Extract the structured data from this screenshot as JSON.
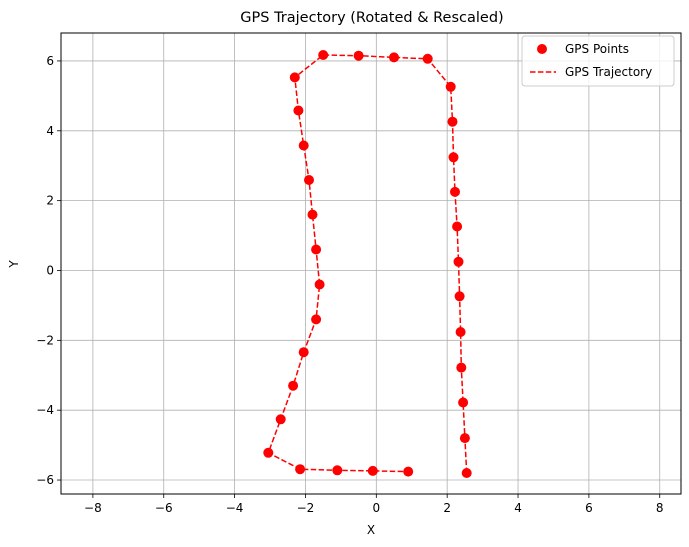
{
  "chart_data": {
    "type": "scatter",
    "title": "GPS Trajectory (Rotated & Rescaled)",
    "xlabel": "X",
    "ylabel": "Y",
    "xlim": [
      -8.9,
      8.6
    ],
    "ylim": [
      -6.4,
      6.8
    ],
    "xticks": [
      -8,
      -6,
      -4,
      -2,
      0,
      2,
      4,
      6,
      8
    ],
    "yticks": [
      -6,
      -4,
      -2,
      0,
      2,
      4,
      6
    ],
    "grid": true,
    "legend_position": "top-right",
    "series": [
      {
        "name": "GPS Points",
        "kind": "scatter",
        "color": "#ff0000",
        "points": [
          [
            2.55,
            -5.8
          ],
          [
            2.5,
            -4.8
          ],
          [
            2.45,
            -3.78
          ],
          [
            2.4,
            -2.78
          ],
          [
            2.38,
            -1.76
          ],
          [
            2.35,
            -0.74
          ],
          [
            2.32,
            0.25
          ],
          [
            2.28,
            1.26
          ],
          [
            2.22,
            2.25
          ],
          [
            2.18,
            3.24
          ],
          [
            2.15,
            4.26
          ],
          [
            2.1,
            5.26
          ],
          [
            1.45,
            6.06
          ],
          [
            0.5,
            6.1
          ],
          [
            -0.5,
            6.15
          ],
          [
            -1.5,
            6.17
          ],
          [
            -2.3,
            5.53
          ],
          [
            -2.2,
            4.58
          ],
          [
            -2.05,
            3.58
          ],
          [
            -1.9,
            2.59
          ],
          [
            -1.8,
            1.6
          ],
          [
            -1.7,
            0.6
          ],
          [
            -1.6,
            -0.4
          ],
          [
            -1.7,
            -1.4
          ],
          [
            -2.05,
            -2.34
          ],
          [
            -2.35,
            -3.3
          ],
          [
            -2.7,
            -4.26
          ],
          [
            -3.05,
            -5.22
          ],
          [
            -2.15,
            -5.69
          ],
          [
            -1.1,
            -5.72
          ],
          [
            -0.1,
            -5.74
          ],
          [
            0.9,
            -5.76
          ]
        ]
      },
      {
        "name": "GPS Trajectory",
        "kind": "line",
        "color": "#ff0000",
        "dash": "dashed",
        "points": [
          [
            2.55,
            -5.8
          ],
          [
            2.5,
            -4.8
          ],
          [
            2.45,
            -3.78
          ],
          [
            2.4,
            -2.78
          ],
          [
            2.38,
            -1.76
          ],
          [
            2.35,
            -0.74
          ],
          [
            2.32,
            0.25
          ],
          [
            2.28,
            1.26
          ],
          [
            2.22,
            2.25
          ],
          [
            2.18,
            3.24
          ],
          [
            2.15,
            4.26
          ],
          [
            2.1,
            5.26
          ],
          [
            1.45,
            6.06
          ],
          [
            0.5,
            6.1
          ],
          [
            -0.5,
            6.15
          ],
          [
            -1.5,
            6.17
          ],
          [
            -2.3,
            5.53
          ],
          [
            -2.2,
            4.58
          ],
          [
            -2.05,
            3.58
          ],
          [
            -1.9,
            2.59
          ],
          [
            -1.8,
            1.6
          ],
          [
            -1.7,
            0.6
          ],
          [
            -1.6,
            -0.4
          ],
          [
            -1.7,
            -1.4
          ],
          [
            -2.05,
            -2.34
          ],
          [
            -2.35,
            -3.3
          ],
          [
            -2.7,
            -4.26
          ],
          [
            -3.05,
            -5.22
          ],
          [
            -2.15,
            -5.69
          ],
          [
            -1.1,
            -5.72
          ],
          [
            -0.1,
            -5.74
          ],
          [
            0.9,
            -5.76
          ]
        ]
      }
    ]
  }
}
